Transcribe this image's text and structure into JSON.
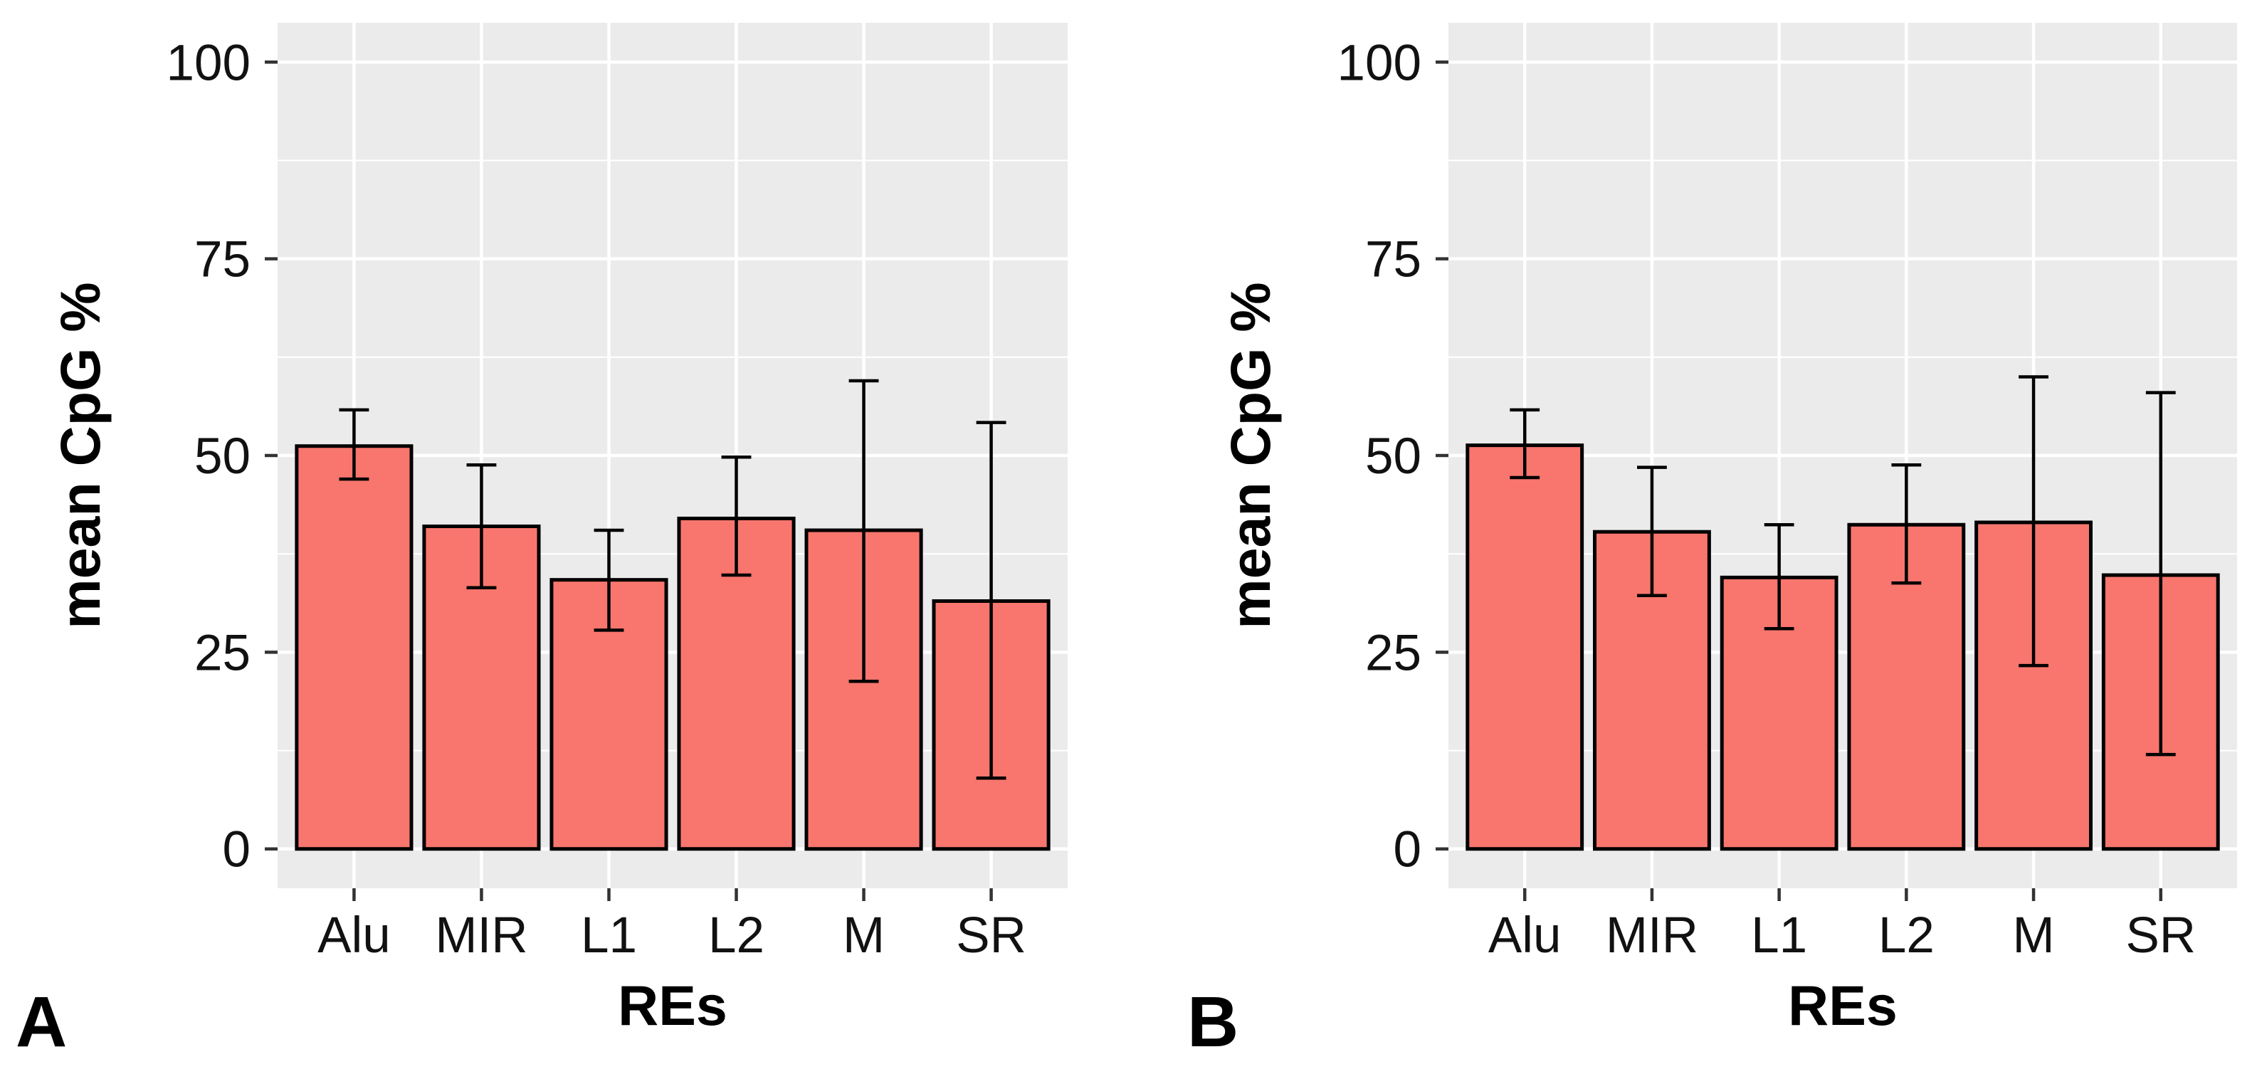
{
  "chart_data": [
    {
      "type": "bar",
      "panel_label": "A",
      "categories": [
        "Alu",
        "MIR",
        "L1",
        "L2",
        "M",
        "SR"
      ],
      "values": [
        51.2,
        41.0,
        34.2,
        42.0,
        40.5,
        31.5
      ],
      "error_low": [
        47.0,
        33.2,
        27.8,
        34.8,
        21.3,
        9.0
      ],
      "error_high": [
        55.8,
        48.8,
        40.5,
        49.8,
        59.5,
        54.2
      ],
      "xlabel": "REs",
      "ylabel": "mean CpG %",
      "ylim": [
        -5,
        105
      ],
      "yticks": [
        0,
        25,
        50,
        75,
        100
      ],
      "ytick_labels": [
        "0",
        "25",
        "50",
        "75",
        "100"
      ],
      "bar_color": "#F8766D",
      "grid": true
    },
    {
      "type": "bar",
      "panel_label": "B",
      "categories": [
        "Alu",
        "MIR",
        "L1",
        "L2",
        "M",
        "SR"
      ],
      "values": [
        51.3,
        40.3,
        34.5,
        41.2,
        41.5,
        34.8
      ],
      "error_low": [
        47.2,
        32.2,
        28.0,
        33.8,
        23.3,
        12.0
      ],
      "error_high": [
        55.8,
        48.5,
        41.2,
        48.8,
        60.0,
        58.0
      ],
      "xlabel": "REs",
      "ylabel": "mean CpG %",
      "ylim": [
        -5,
        105
      ],
      "yticks": [
        0,
        25,
        50,
        75,
        100
      ],
      "ytick_labels": [
        "0",
        "25",
        "50",
        "75",
        "100"
      ],
      "bar_color": "#F8766D",
      "grid": true
    }
  ]
}
